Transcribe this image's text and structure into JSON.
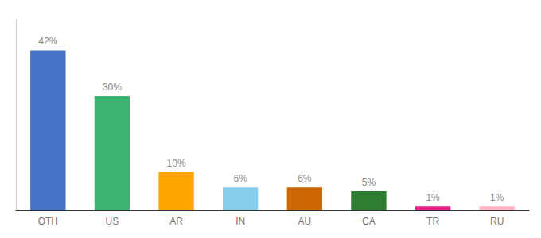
{
  "chart_data": {
    "type": "bar",
    "categories": [
      "OTH",
      "US",
      "AR",
      "IN",
      "AU",
      "CA",
      "TR",
      "RU"
    ],
    "values": [
      42,
      30,
      10,
      6,
      6,
      5,
      1,
      1
    ],
    "value_labels": [
      "42%",
      "30%",
      "10%",
      "6%",
      "6%",
      "5%",
      "1%",
      "1%"
    ],
    "colors": [
      "#4472C4",
      "#3CB371",
      "#FFA500",
      "#87CEEB",
      "#CC6600",
      "#2E7D32",
      "#E91E8C",
      "#FFB6C1"
    ],
    "ylim": [
      0,
      50
    ],
    "data_labels": true,
    "tick_labels": "x",
    "grid": false
  }
}
